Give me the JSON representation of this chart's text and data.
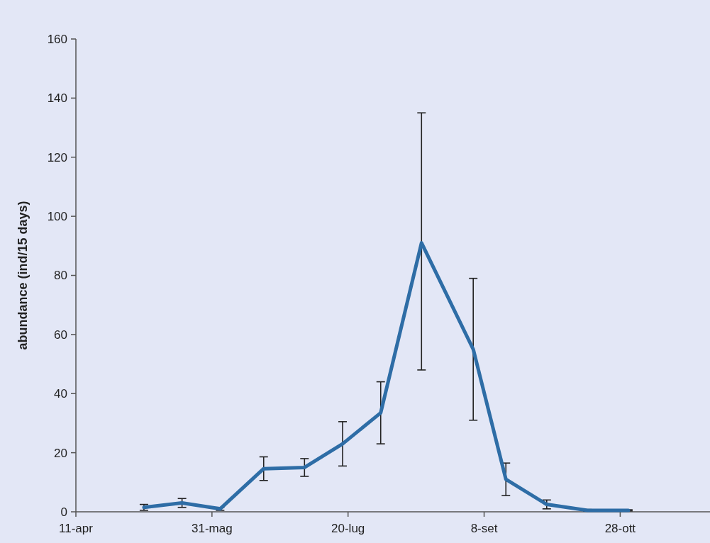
{
  "chart_data": {
    "type": "line",
    "ylabel": "abundance (ind/15 days)",
    "x": [
      "--05-06",
      "--05-20",
      "--06-03",
      "--06-19",
      "--07-04",
      "--07-18",
      "--08-01",
      "--08-16",
      "--09-04",
      "--09-16",
      "--10-01",
      "--10-16",
      "--10-31"
    ],
    "series": [
      {
        "color": "#2e6da6",
        "values": [
          1.5,
          3,
          1,
          14.6,
          15,
          23,
          33.5,
          91,
          55,
          11,
          2.5,
          0.5,
          0.5
        ],
        "errors": [
          1,
          1.5,
          0.5,
          4,
          3,
          7.5,
          10.5,
          [
            48,
            135
          ],
          24,
          5.5,
          1.5,
          0.3,
          0.2
        ]
      }
    ],
    "xlim": [
      "--04-11",
      "--11-30"
    ],
    "xticks": [
      {
        "value": "--04-11",
        "label": "11-apr"
      },
      {
        "value": "--05-31",
        "label": "31-mag"
      },
      {
        "value": "--07-20",
        "label": "20-lug"
      },
      {
        "value": "--09-08",
        "label": "8-set"
      },
      {
        "value": "--10-28",
        "label": "28-ott"
      }
    ],
    "ylim": [
      0,
      160
    ],
    "yticks": [
      0,
      20,
      40,
      60,
      80,
      100,
      120,
      140,
      160
    ],
    "grid": false,
    "marker": "none",
    "line_style": "solid"
  }
}
